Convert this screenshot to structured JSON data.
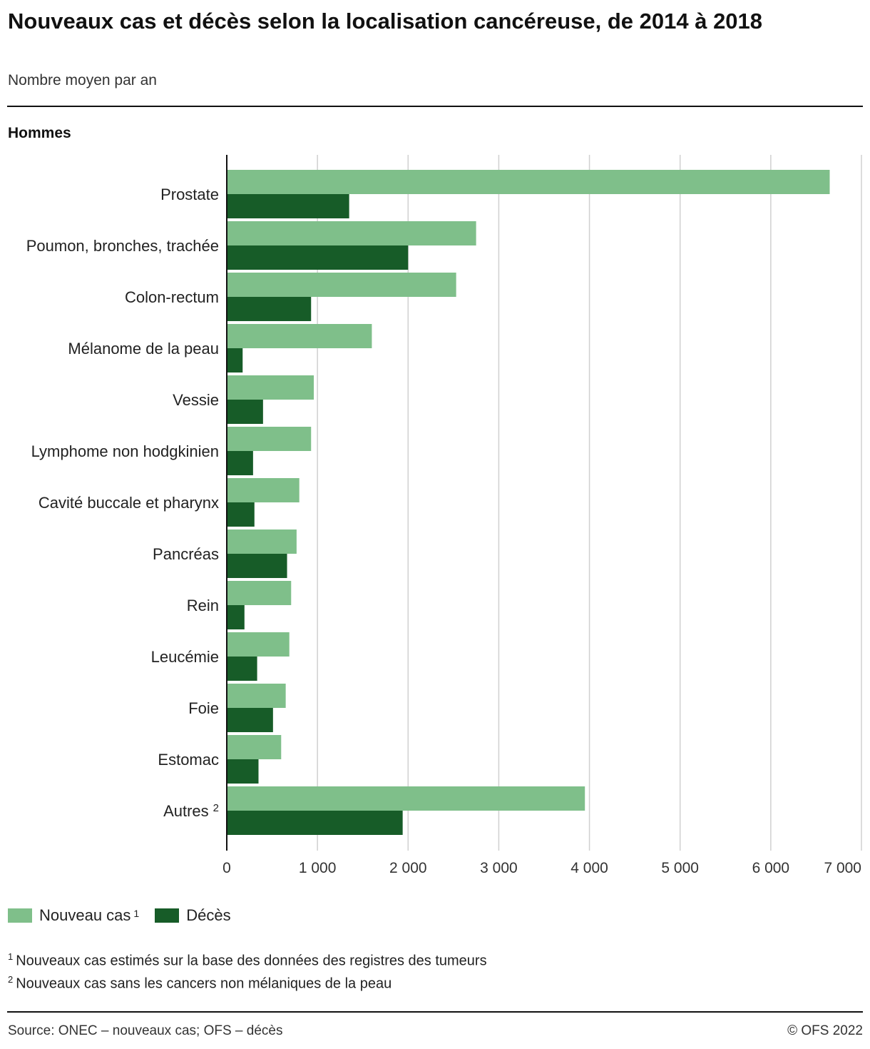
{
  "header": {
    "title": "Nouveaux cas et décès selon la localisation cancéreuse, de 2014 à 2018",
    "subtitle": "Nombre moyen par an",
    "panel": "Hommes"
  },
  "colors": {
    "new_cases": "#7fbf8a",
    "deaths": "#175c28",
    "grid": "#d0d0d0",
    "axis": "#111111"
  },
  "chart_data": {
    "type": "bar",
    "orientation": "horizontal",
    "title": "Nouveaux cas et décès selon la localisation cancéreuse, de 2014 à 2018",
    "subtitle": "Nombre moyen par an",
    "xlabel": "",
    "ylabel": "",
    "xlim": [
      0,
      7000
    ],
    "xticks": [
      0,
      1000,
      2000,
      3000,
      4000,
      5000,
      6000,
      7000
    ],
    "xtick_labels": [
      "0",
      "1 000",
      "2 000",
      "3 000",
      "4 000",
      "5 000",
      "6 000",
      "7 000"
    ],
    "grid": "vertical",
    "legend_position": "bottom-left",
    "categories": [
      "Prostate",
      "Poumon, bronches, trachée",
      "Colon-rectum",
      "Mélanome de la peau",
      "Vessie",
      "Lymphome non hodgkinien",
      "Cavité buccale et pharynx",
      "Pancréas",
      "Rein",
      "Leucémie",
      "Foie",
      "Estomac",
      "Autres"
    ],
    "category_footnotes": [
      "",
      "",
      "",
      "",
      "",
      "",
      "",
      "",
      "",
      "",
      "",
      "",
      "2"
    ],
    "series": [
      {
        "name": "Nouveau cas",
        "footnote": "1",
        "values": [
          6650,
          2750,
          2530,
          1600,
          960,
          930,
          800,
          770,
          710,
          690,
          650,
          600,
          3950
        ]
      },
      {
        "name": "Décès",
        "footnote": "",
        "values": [
          1350,
          2000,
          930,
          175,
          400,
          290,
          305,
          665,
          195,
          335,
          510,
          350,
          1940
        ]
      }
    ]
  },
  "legend": {
    "new_cases": {
      "label": "Nouveau cas",
      "footnote": "1"
    },
    "deaths": {
      "label": "Décès"
    }
  },
  "notes": [
    {
      "mark": "1",
      "text": "Nouveaux cas estimés sur la base des données des registres des tumeurs"
    },
    {
      "mark": "2",
      "text": "Nouveaux cas sans les cancers non mélaniques de la peau"
    }
  ],
  "footer": {
    "source": "Source: ONEC – nouveaux cas; OFS – décès",
    "copyright": "© OFS 2022"
  }
}
